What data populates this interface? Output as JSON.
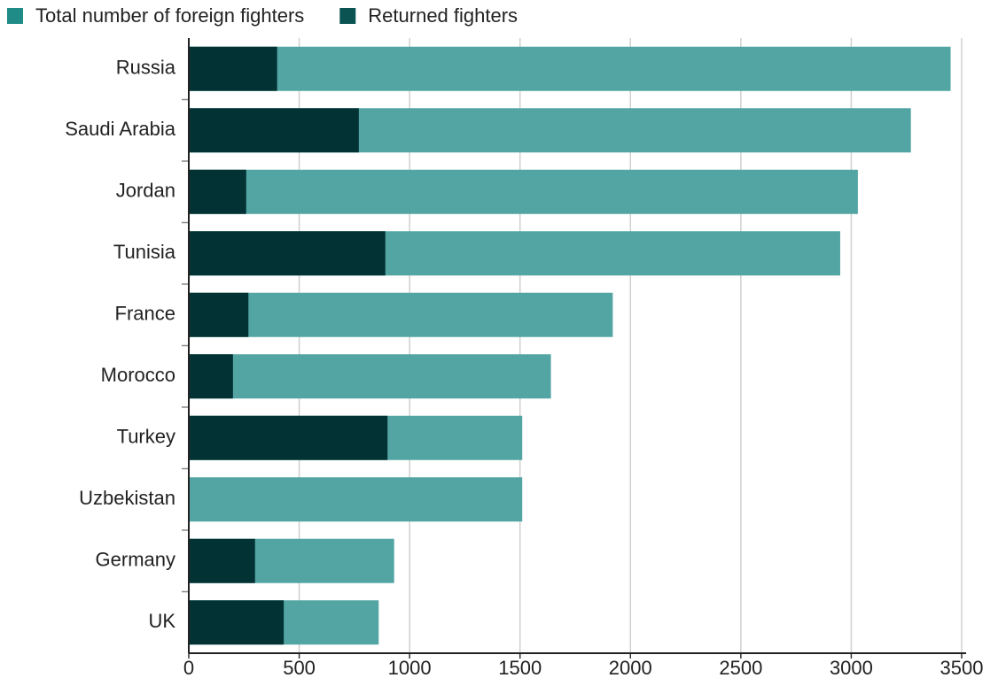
{
  "chart_data": {
    "type": "bar",
    "orientation": "horizontal",
    "overlap": true,
    "categories": [
      "Russia",
      "Saudi Arabia",
      "Jordan",
      "Tunisia",
      "France",
      "Morocco",
      "Turkey",
      "Uzbekistan",
      "Germany",
      "UK"
    ],
    "series": [
      {
        "name": "Total number of foreign fighters",
        "color": "#52a5a3",
        "legend_color": "#1f8c88",
        "values": [
          3450,
          3270,
          3030,
          2950,
          1920,
          1640,
          1510,
          1510,
          930,
          860
        ]
      },
      {
        "name": "Returned fighters",
        "color": "#023234",
        "legend_color": "#0b5252",
        "values": [
          400,
          770,
          260,
          890,
          270,
          200,
          900,
          null,
          300,
          430
        ]
      }
    ],
    "xlim": [
      0,
      3500
    ],
    "xticks": [
      0,
      500,
      1000,
      1500,
      2000,
      2500,
      3000,
      3500
    ],
    "grid": true
  }
}
